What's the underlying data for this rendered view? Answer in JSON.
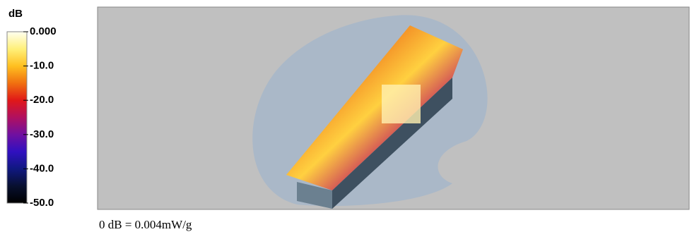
{
  "colorbar": {
    "unit": "dB",
    "ticks": [
      "0.000",
      "-10.0",
      "-20.0",
      "-30.0",
      "-40.0",
      "-50.0"
    ]
  },
  "caption": "0 dB = 0.004mW/g"
}
